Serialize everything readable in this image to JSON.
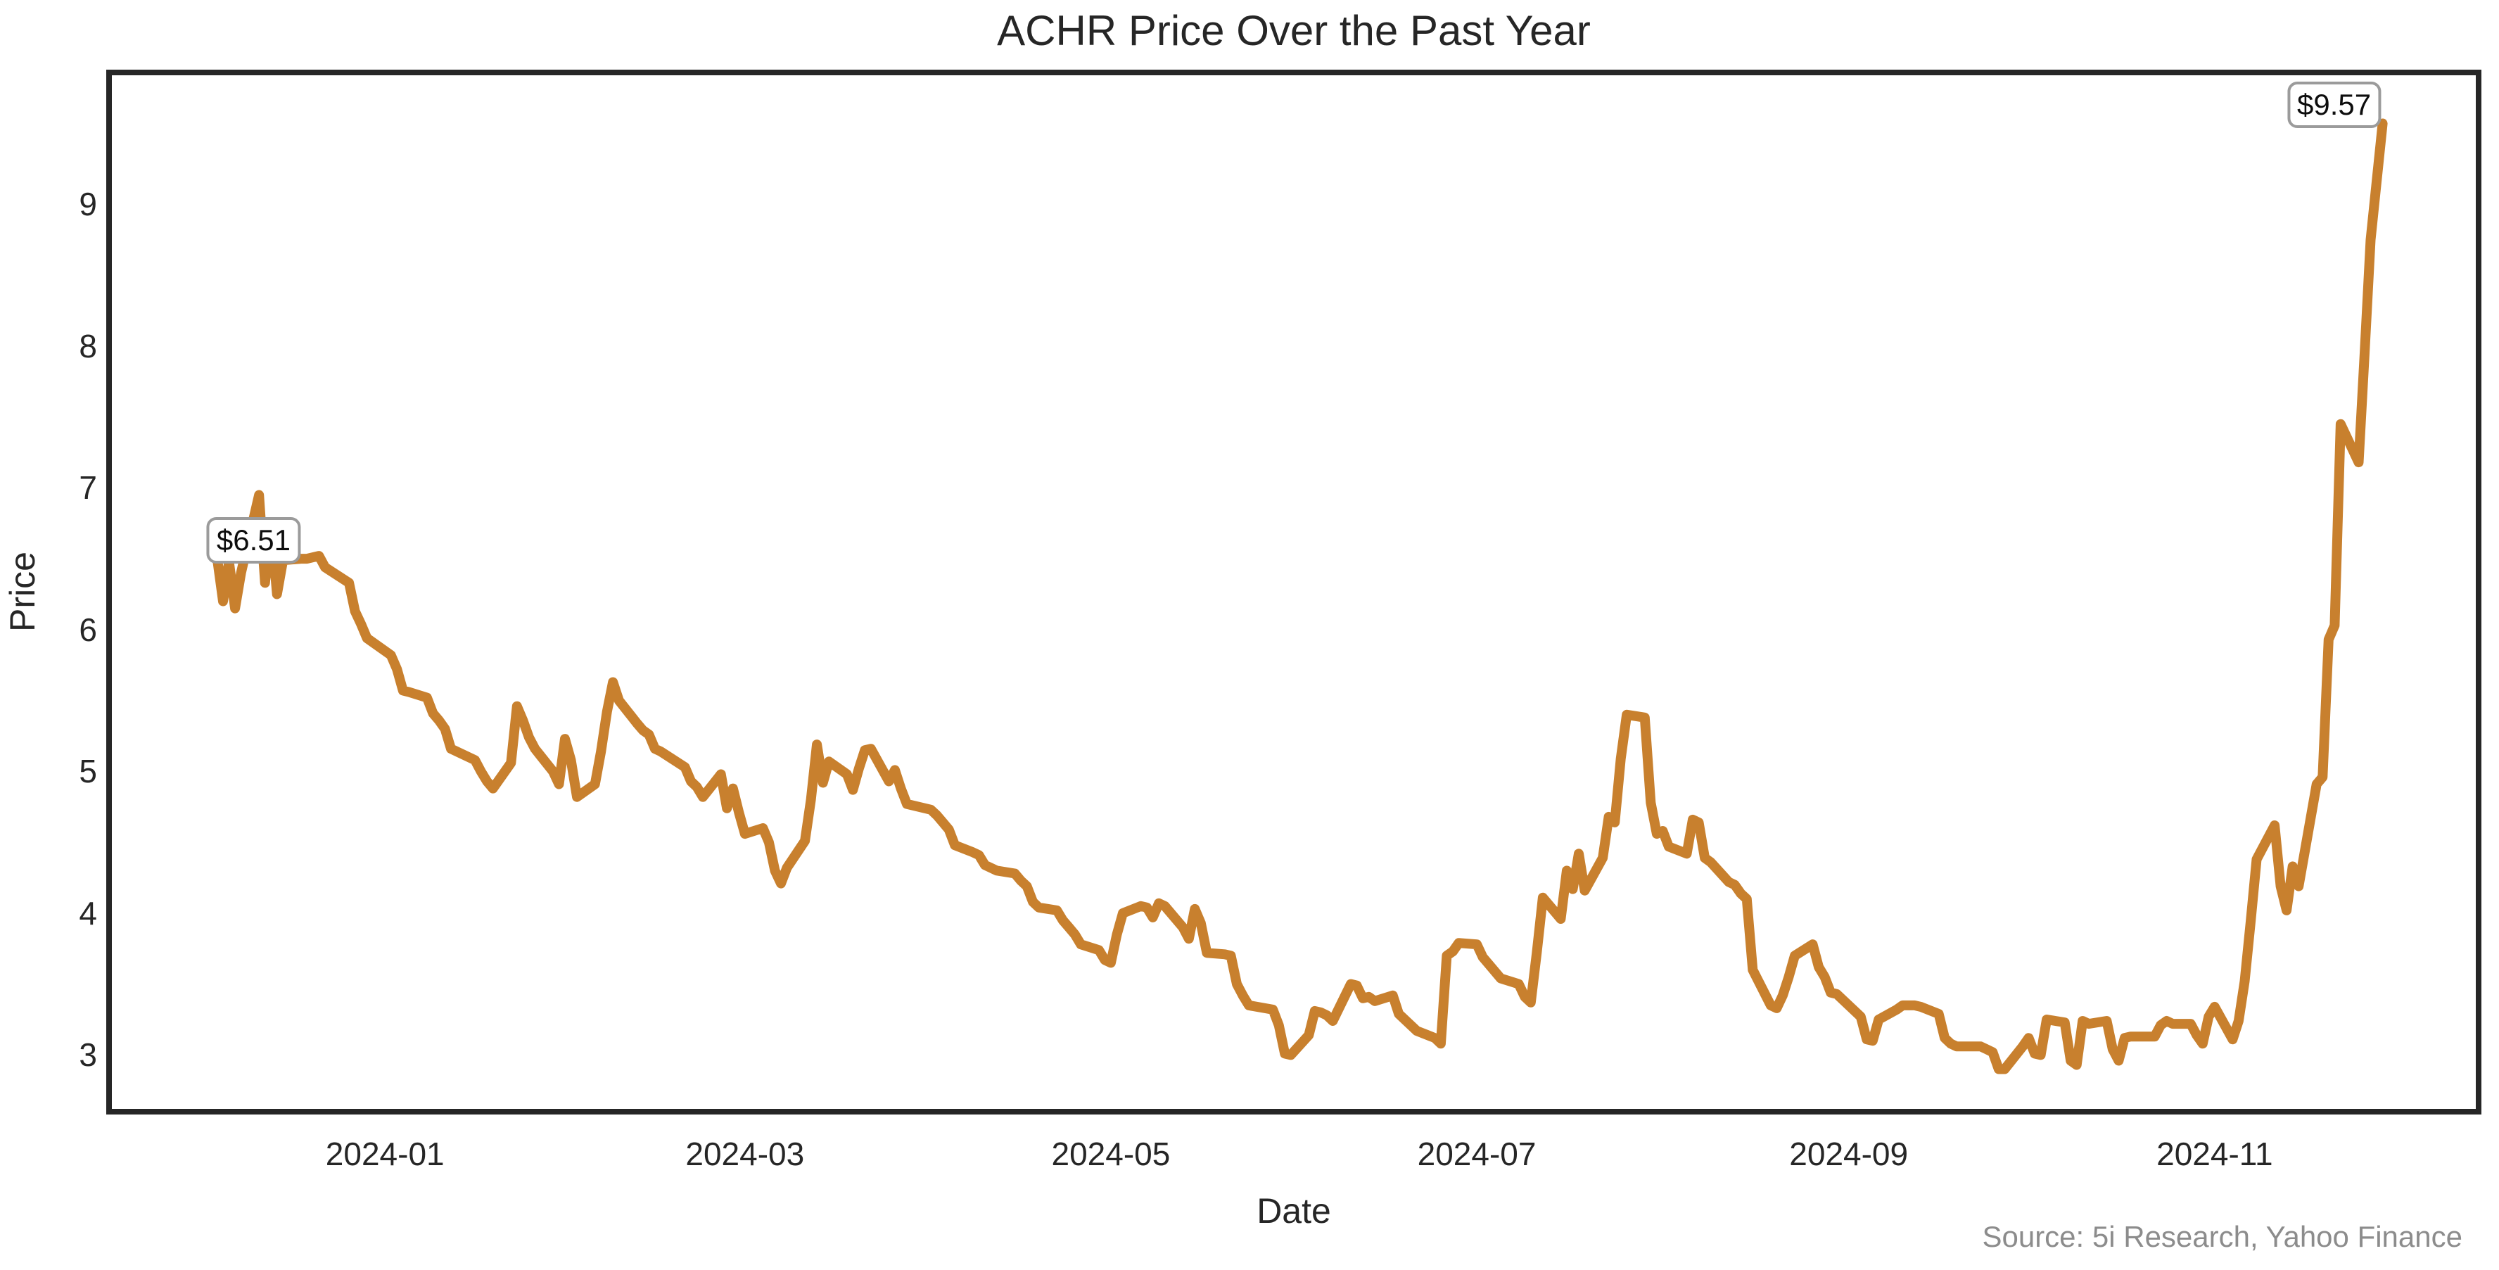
{
  "figure": {
    "title": "ACHR Price Over the Past Year",
    "source_note": "Source: 5i Research, Yahoo Finance"
  },
  "chart_data": {
    "type": "line",
    "title": "ACHR Price Over the Past Year",
    "xlabel": "Date",
    "ylabel": "Price",
    "legend": "none",
    "grid": false,
    "line_color": "#C8802E",
    "axis_color": "#262626",
    "ylim": [
      2.6,
      9.93
    ],
    "xlim": [
      "2023-11-16",
      "2024-12-15"
    ],
    "yticks": [
      3,
      4,
      5,
      6,
      7,
      8,
      9
    ],
    "xticks": [
      "2024-01",
      "2024-03",
      "2024-05",
      "2024-07",
      "2024-09",
      "2024-11"
    ],
    "points": [
      [
        "2023-12-04",
        6.51
      ],
      [
        "2023-12-05",
        6.2
      ],
      [
        "2023-12-06",
        6.48
      ],
      [
        "2023-12-07",
        6.15
      ],
      [
        "2023-12-08",
        6.4
      ],
      [
        "2023-12-11",
        6.95
      ],
      [
        "2023-12-12",
        6.33
      ],
      [
        "2023-12-13",
        6.73
      ],
      [
        "2023-12-14",
        6.25
      ],
      [
        "2023-12-15",
        6.49
      ],
      [
        "2023-12-18",
        6.5
      ],
      [
        "2023-12-19",
        6.5
      ],
      [
        "2023-12-20",
        6.51
      ],
      [
        "2023-12-21",
        6.52
      ],
      [
        "2023-12-22",
        6.44
      ],
      [
        "2023-12-26",
        6.33
      ],
      [
        "2023-12-27",
        6.13
      ],
      [
        "2023-12-28",
        6.04
      ],
      [
        "2023-12-29",
        5.94
      ],
      [
        "2024-01-02",
        5.82
      ],
      [
        "2024-01-03",
        5.72
      ],
      [
        "2024-01-04",
        5.57
      ],
      [
        "2024-01-05",
        5.56
      ],
      [
        "2024-01-08",
        5.52
      ],
      [
        "2024-01-09",
        5.41
      ],
      [
        "2024-01-10",
        5.36
      ],
      [
        "2024-01-11",
        5.3
      ],
      [
        "2024-01-12",
        5.16
      ],
      [
        "2024-01-16",
        5.08
      ],
      [
        "2024-01-17",
        5.0
      ],
      [
        "2024-01-18",
        4.93
      ],
      [
        "2024-01-19",
        4.88
      ],
      [
        "2024-01-22",
        5.06
      ],
      [
        "2024-01-23",
        5.46
      ],
      [
        "2024-01-24",
        5.36
      ],
      [
        "2024-01-25",
        5.24
      ],
      [
        "2024-01-26",
        5.16
      ],
      [
        "2024-01-29",
        5.0
      ],
      [
        "2024-01-30",
        4.91
      ],
      [
        "2024-01-31",
        5.23
      ],
      [
        "2024-02-01",
        5.08
      ],
      [
        "2024-02-02",
        4.82
      ],
      [
        "2024-02-05",
        4.91
      ],
      [
        "2024-02-06",
        5.14
      ],
      [
        "2024-02-07",
        5.42
      ],
      [
        "2024-02-08",
        5.63
      ],
      [
        "2024-02-09",
        5.5
      ],
      [
        "2024-02-12",
        5.34
      ],
      [
        "2024-02-13",
        5.29
      ],
      [
        "2024-02-14",
        5.26
      ],
      [
        "2024-02-15",
        5.16
      ],
      [
        "2024-02-16",
        5.14
      ],
      [
        "2024-02-20",
        5.03
      ],
      [
        "2024-02-21",
        4.93
      ],
      [
        "2024-02-22",
        4.89
      ],
      [
        "2024-02-23",
        4.82
      ],
      [
        "2024-02-26",
        4.98
      ],
      [
        "2024-02-27",
        4.74
      ],
      [
        "2024-02-28",
        4.88
      ],
      [
        "2024-02-29",
        4.71
      ],
      [
        "2024-03-01",
        4.56
      ],
      [
        "2024-03-04",
        4.6
      ],
      [
        "2024-03-05",
        4.5
      ],
      [
        "2024-03-06",
        4.3
      ],
      [
        "2024-03-07",
        4.21
      ],
      [
        "2024-03-08",
        4.32
      ],
      [
        "2024-03-11",
        4.51
      ],
      [
        "2024-03-12",
        4.8
      ],
      [
        "2024-03-13",
        5.19
      ],
      [
        "2024-03-14",
        4.92
      ],
      [
        "2024-03-15",
        5.07
      ],
      [
        "2024-03-18",
        4.98
      ],
      [
        "2024-03-19",
        4.87
      ],
      [
        "2024-03-20",
        5.02
      ],
      [
        "2024-03-21",
        5.15
      ],
      [
        "2024-03-22",
        5.16
      ],
      [
        "2024-03-25",
        4.93
      ],
      [
        "2024-03-26",
        5.01
      ],
      [
        "2024-03-27",
        4.88
      ],
      [
        "2024-03-28",
        4.77
      ],
      [
        "2024-04-01",
        4.73
      ],
      [
        "2024-04-02",
        4.69
      ],
      [
        "2024-04-03",
        4.64
      ],
      [
        "2024-04-04",
        4.59
      ],
      [
        "2024-04-05",
        4.48
      ],
      [
        "2024-04-08",
        4.43
      ],
      [
        "2024-04-09",
        4.41
      ],
      [
        "2024-04-10",
        4.34
      ],
      [
        "2024-04-12",
        4.3
      ],
      [
        "2024-04-15",
        4.28
      ],
      [
        "2024-04-16",
        4.23
      ],
      [
        "2024-04-17",
        4.19
      ],
      [
        "2024-04-18",
        4.08
      ],
      [
        "2024-04-19",
        4.04
      ],
      [
        "2024-04-22",
        4.02
      ],
      [
        "2024-04-23",
        3.95
      ],
      [
        "2024-04-24",
        3.9
      ],
      [
        "2024-04-25",
        3.85
      ],
      [
        "2024-04-26",
        3.78
      ],
      [
        "2024-04-29",
        3.74
      ],
      [
        "2024-04-30",
        3.67
      ],
      [
        "2024-05-01",
        3.65
      ],
      [
        "2024-05-02",
        3.85
      ],
      [
        "2024-05-03",
        4.0
      ],
      [
        "2024-05-06",
        4.05
      ],
      [
        "2024-05-07",
        4.04
      ],
      [
        "2024-05-08",
        3.97
      ],
      [
        "2024-05-09",
        4.07
      ],
      [
        "2024-05-10",
        4.05
      ],
      [
        "2024-05-13",
        3.9
      ],
      [
        "2024-05-14",
        3.82
      ],
      [
        "2024-05-15",
        4.03
      ],
      [
        "2024-05-16",
        3.93
      ],
      [
        "2024-05-17",
        3.72
      ],
      [
        "2024-05-20",
        3.71
      ],
      [
        "2024-05-21",
        3.7
      ],
      [
        "2024-05-22",
        3.5
      ],
      [
        "2024-05-23",
        3.42
      ],
      [
        "2024-05-24",
        3.35
      ],
      [
        "2024-05-28",
        3.32
      ],
      [
        "2024-05-29",
        3.21
      ],
      [
        "2024-05-30",
        3.01
      ],
      [
        "2024-05-31",
        3.0
      ],
      [
        "2024-06-03",
        3.14
      ],
      [
        "2024-06-04",
        3.31
      ],
      [
        "2024-06-05",
        3.3
      ],
      [
        "2024-06-06",
        3.28
      ],
      [
        "2024-06-07",
        3.24
      ],
      [
        "2024-06-10",
        3.5
      ],
      [
        "2024-06-11",
        3.49
      ],
      [
        "2024-06-12",
        3.4
      ],
      [
        "2024-06-13",
        3.41
      ],
      [
        "2024-06-14",
        3.38
      ],
      [
        "2024-06-17",
        3.42
      ],
      [
        "2024-06-18",
        3.29
      ],
      [
        "2024-06-20",
        3.21
      ],
      [
        "2024-06-21",
        3.17
      ],
      [
        "2024-06-24",
        3.12
      ],
      [
        "2024-06-25",
        3.08
      ],
      [
        "2024-06-26",
        3.7
      ],
      [
        "2024-06-27",
        3.73
      ],
      [
        "2024-06-28",
        3.79
      ],
      [
        "2024-07-01",
        3.78
      ],
      [
        "2024-07-02",
        3.69
      ],
      [
        "2024-07-03",
        3.64
      ],
      [
        "2024-07-05",
        3.54
      ],
      [
        "2024-07-08",
        3.5
      ],
      [
        "2024-07-09",
        3.41
      ],
      [
        "2024-07-10",
        3.37
      ],
      [
        "2024-07-11",
        3.72
      ],
      [
        "2024-07-12",
        4.11
      ],
      [
        "2024-07-15",
        3.96
      ],
      [
        "2024-07-16",
        4.3
      ],
      [
        "2024-07-17",
        4.17
      ],
      [
        "2024-07-18",
        4.42
      ],
      [
        "2024-07-19",
        4.16
      ],
      [
        "2024-07-22",
        4.39
      ],
      [
        "2024-07-23",
        4.68
      ],
      [
        "2024-07-24",
        4.64
      ],
      [
        "2024-07-25",
        5.09
      ],
      [
        "2024-07-26",
        5.4
      ],
      [
        "2024-07-29",
        5.38
      ],
      [
        "2024-07-30",
        4.78
      ],
      [
        "2024-07-31",
        4.56
      ],
      [
        "2024-08-01",
        4.58
      ],
      [
        "2024-08-02",
        4.47
      ],
      [
        "2024-08-05",
        4.42
      ],
      [
        "2024-08-06",
        4.66
      ],
      [
        "2024-08-07",
        4.64
      ],
      [
        "2024-08-08",
        4.39
      ],
      [
        "2024-08-09",
        4.36
      ],
      [
        "2024-08-12",
        4.22
      ],
      [
        "2024-08-13",
        4.2
      ],
      [
        "2024-08-14",
        4.14
      ],
      [
        "2024-08-15",
        4.1
      ],
      [
        "2024-08-16",
        3.6
      ],
      [
        "2024-08-19",
        3.35
      ],
      [
        "2024-08-20",
        3.33
      ],
      [
        "2024-08-21",
        3.42
      ],
      [
        "2024-08-22",
        3.55
      ],
      [
        "2024-08-23",
        3.7
      ],
      [
        "2024-08-26",
        3.78
      ],
      [
        "2024-08-27",
        3.62
      ],
      [
        "2024-08-28",
        3.55
      ],
      [
        "2024-08-29",
        3.44
      ],
      [
        "2024-08-30",
        3.43
      ],
      [
        "2024-09-03",
        3.27
      ],
      [
        "2024-09-04",
        3.11
      ],
      [
        "2024-09-05",
        3.1
      ],
      [
        "2024-09-06",
        3.25
      ],
      [
        "2024-09-09",
        3.32
      ],
      [
        "2024-09-10",
        3.35
      ],
      [
        "2024-09-11",
        3.35
      ],
      [
        "2024-09-12",
        3.35
      ],
      [
        "2024-09-13",
        3.34
      ],
      [
        "2024-09-16",
        3.29
      ],
      [
        "2024-09-17",
        3.12
      ],
      [
        "2024-09-18",
        3.08
      ],
      [
        "2024-09-19",
        3.06
      ],
      [
        "2024-09-20",
        3.06
      ],
      [
        "2024-09-23",
        3.06
      ],
      [
        "2024-09-24",
        3.04
      ],
      [
        "2024-09-25",
        3.02
      ],
      [
        "2024-09-26",
        2.9
      ],
      [
        "2024-09-27",
        2.9
      ],
      [
        "2024-09-30",
        3.06
      ],
      [
        "2024-10-01",
        3.12
      ],
      [
        "2024-10-02",
        3.01
      ],
      [
        "2024-10-03",
        3.0
      ],
      [
        "2024-10-04",
        3.25
      ],
      [
        "2024-10-07",
        3.23
      ],
      [
        "2024-10-08",
        2.96
      ],
      [
        "2024-10-09",
        2.93
      ],
      [
        "2024-10-10",
        3.24
      ],
      [
        "2024-10-11",
        3.22
      ],
      [
        "2024-10-14",
        3.24
      ],
      [
        "2024-10-15",
        3.04
      ],
      [
        "2024-10-16",
        2.96
      ],
      [
        "2024-10-17",
        3.12
      ],
      [
        "2024-10-18",
        3.13
      ],
      [
        "2024-10-21",
        3.13
      ],
      [
        "2024-10-22",
        3.13
      ],
      [
        "2024-10-23",
        3.21
      ],
      [
        "2024-10-24",
        3.24
      ],
      [
        "2024-10-25",
        3.22
      ],
      [
        "2024-10-28",
        3.22
      ],
      [
        "2024-10-29",
        3.14
      ],
      [
        "2024-10-30",
        3.08
      ],
      [
        "2024-10-31",
        3.27
      ],
      [
        "2024-11-01",
        3.34
      ],
      [
        "2024-11-04",
        3.11
      ],
      [
        "2024-11-05",
        3.24
      ],
      [
        "2024-11-06",
        3.52
      ],
      [
        "2024-11-07",
        3.94
      ],
      [
        "2024-11-08",
        4.38
      ],
      [
        "2024-11-11",
        4.62
      ],
      [
        "2024-11-12",
        4.19
      ],
      [
        "2024-11-13",
        4.02
      ],
      [
        "2024-11-14",
        4.33
      ],
      [
        "2024-11-15",
        4.19
      ],
      [
        "2024-11-18",
        4.91
      ],
      [
        "2024-11-19",
        4.96
      ],
      [
        "2024-11-20",
        5.93
      ],
      [
        "2024-11-21",
        6.03
      ],
      [
        "2024-11-22",
        7.45
      ],
      [
        "2024-11-25",
        7.18
      ],
      [
        "2024-11-26",
        7.95
      ],
      [
        "2024-11-27",
        8.75
      ],
      [
        "2024-11-29",
        9.57
      ]
    ],
    "annotations": [
      {
        "label": "$6.51",
        "date": "2023-12-04",
        "value": 6.51,
        "offset": [
          52,
          -24
        ]
      },
      {
        "label": "$9.57",
        "date": "2024-11-29",
        "value": 9.57,
        "offset": [
          -69,
          -27
        ]
      }
    ]
  }
}
